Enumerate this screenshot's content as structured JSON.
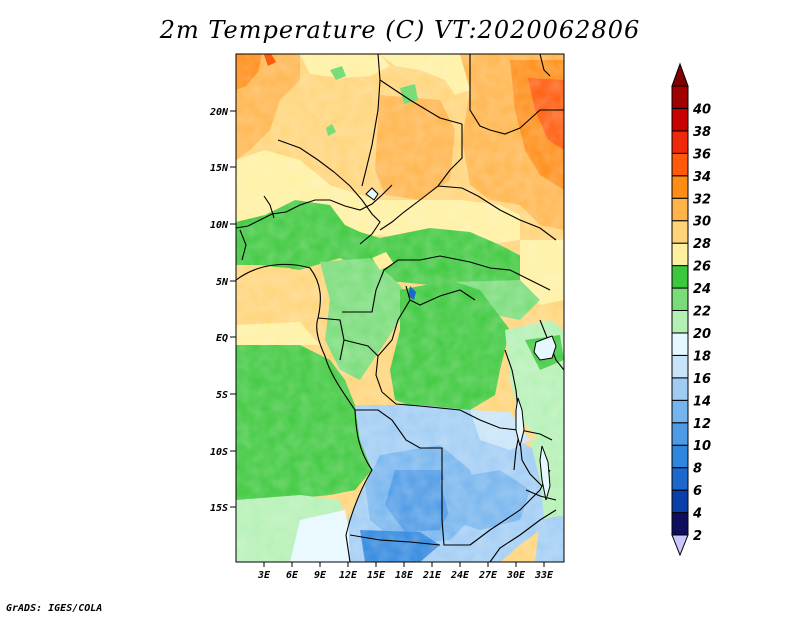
{
  "title": "2m Temperature (C) VT:2020062806",
  "credit": "GrADS: IGES/COLA",
  "map": {
    "lat_labels": [
      "20N",
      "15N",
      "10N",
      "5N",
      "EQ",
      "5S",
      "10S",
      "15S"
    ],
    "lon_labels": [
      "3E",
      "6E",
      "9E",
      "12E",
      "15E",
      "18E",
      "21E",
      "24E",
      "27E",
      "30E",
      "33E"
    ]
  },
  "colorbar": {
    "levels": [
      "2",
      "4",
      "6",
      "8",
      "10",
      "12",
      "14",
      "16",
      "18",
      "20",
      "22",
      "24",
      "26",
      "28",
      "30",
      "32",
      "34",
      "36",
      "38",
      "40"
    ],
    "colors": [
      "#c8c8ff",
      "#0e0e5e",
      "#0b3fa8",
      "#1c68cc",
      "#2e86de",
      "#4d9ae6",
      "#75b4ee",
      "#a0ccf4",
      "#c8e4f8",
      "#e6f8ff",
      "#b4f0b4",
      "#78dc78",
      "#3cc83c",
      "#fff0a0",
      "#ffd478",
      "#ffb44a",
      "#ff8c14",
      "#ff5a0a",
      "#f0280a",
      "#c80000",
      "#a00000",
      "#800000"
    ]
  }
}
